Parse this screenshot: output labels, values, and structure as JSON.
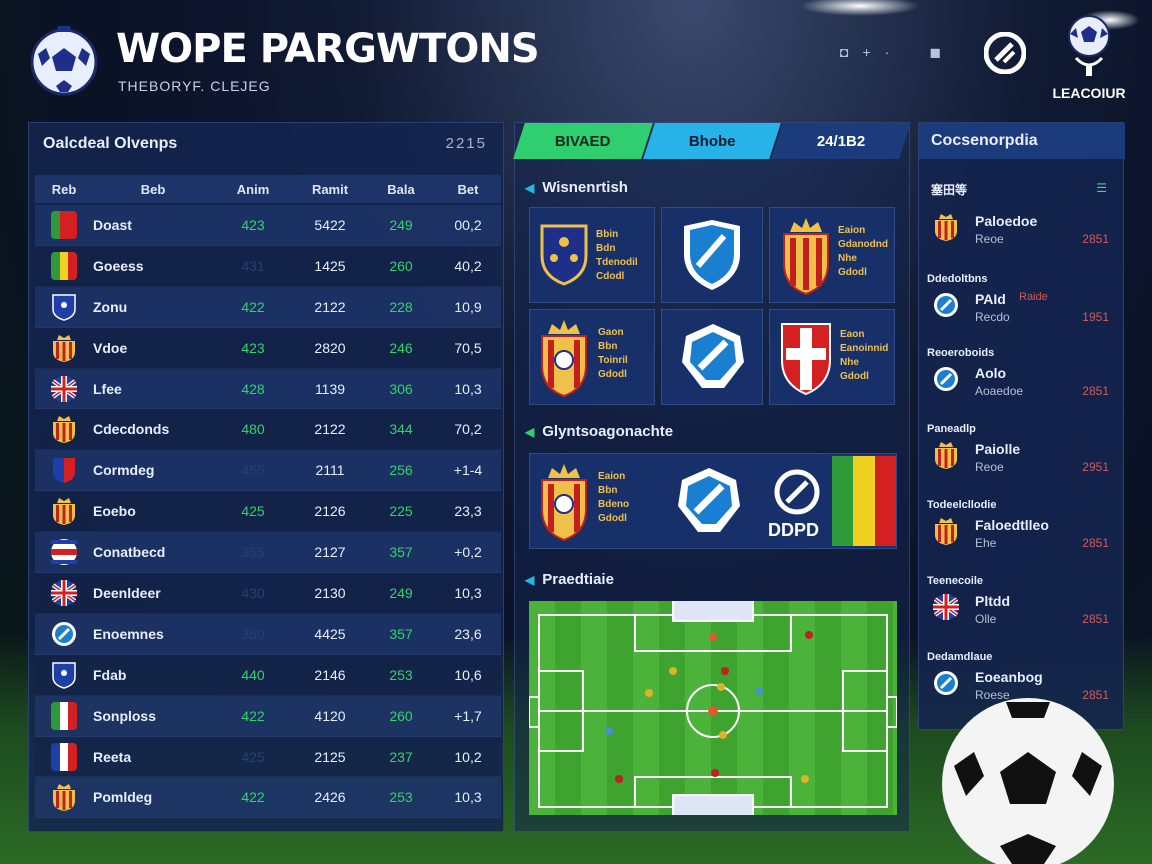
{
  "header": {
    "title": "WOPE PARGWTONS",
    "subtitle": "THEBORYF. CLEJEG",
    "icons": [
      "user-icon",
      "plus-icon",
      "lock-icon"
    ],
    "league_label": "LEACOIUR"
  },
  "standings": {
    "title": "Oalcdeal Olvenps",
    "count": "2215",
    "columns": [
      "Reb",
      "Beb",
      "Anim",
      "Ramit",
      "Bala",
      "Bet"
    ],
    "rows": [
      {
        "team": "Doast",
        "a": "423",
        "b": "5422",
        "c": "249",
        "d": "00,2",
        "a_dim": false,
        "flag": "mex"
      },
      {
        "team": "Goeess",
        "a": "431",
        "b": "1425",
        "c": "260",
        "d": "40,2",
        "a_dim": true,
        "flag": "bel"
      },
      {
        "team": "Zonu",
        "a": "422",
        "b": "2122",
        "c": "228",
        "d": "10,9",
        "a_dim": false,
        "flag": "shield-blue"
      },
      {
        "team": "Vdoe",
        "a": "423",
        "b": "2820",
        "c": "246",
        "d": "70,5",
        "a_dim": false,
        "flag": "spain"
      },
      {
        "team": "Lfee",
        "a": "428",
        "b": "1139",
        "c": "306",
        "d": "10,3",
        "a_dim": false,
        "flag": "uk"
      },
      {
        "team": "Cdecdonds",
        "a": "480",
        "b": "2122",
        "c": "344",
        "d": "70,2",
        "a_dim": false,
        "flag": "spain"
      },
      {
        "team": "Cormdeg",
        "a": "455",
        "b": "2111",
        "c": "256",
        "d": "+1-4",
        "a_dim": true,
        "flag": "shield-red"
      },
      {
        "team": "Eoebo",
        "a": "425",
        "b": "2126",
        "c": "225",
        "d": "23,3",
        "a_dim": false,
        "flag": "spain"
      },
      {
        "team": "Conatbecd",
        "a": "355",
        "b": "2127",
        "c": "357",
        "d": "+0,2",
        "a_dim": true,
        "flag": "en"
      },
      {
        "team": "Deenldeer",
        "a": "430",
        "b": "2130",
        "c": "249",
        "d": "10,3",
        "a_dim": true,
        "flag": "uk"
      },
      {
        "team": "Enoemnes",
        "a": "350",
        "b": "4425",
        "c": "357",
        "d": "23,6",
        "a_dim": true,
        "flag": "round"
      },
      {
        "team": "Fdab",
        "a": "440",
        "b": "2146",
        "c": "253",
        "d": "10,6",
        "a_dim": false,
        "flag": "shield-blue"
      },
      {
        "team": "Sonploss",
        "a": "422",
        "b": "4120",
        "c": "260",
        "d": "+1,7",
        "a_dim": false,
        "flag": "ita"
      },
      {
        "team": "Reeta",
        "a": "425",
        "b": "2125",
        "c": "237",
        "d": "10,2",
        "a_dim": true,
        "flag": "fra"
      },
      {
        "team": "Pomldeg",
        "a": "422",
        "b": "2426",
        "c": "253",
        "d": "10,3",
        "a_dim": false,
        "flag": "spain"
      }
    ]
  },
  "tabs": [
    {
      "label": "BIVAED",
      "color": "#2fcf6f"
    },
    {
      "label": "Bhobe",
      "color": "#27b3e8"
    },
    {
      "label": "24/1B2",
      "color": "#1b3b7c"
    }
  ],
  "middle": {
    "section1": "Wisnenrtish",
    "section2": "Glyntsoagonachte",
    "section3": "Praedtiaie",
    "card_text": {
      "a": [
        "Bbin",
        "Bdn",
        "Tdenodil",
        "Cdodl"
      ],
      "b": [
        "Eaion",
        "Gdanodnd",
        "Nhe",
        "Gdodl"
      ],
      "c": [
        "Gaon",
        "Bbn",
        "Toinril",
        "Gdodl"
      ],
      "d": [
        "Eaon",
        "Eanoinnid",
        "Nhe",
        "Gdodl"
      ],
      "e": [
        "Eaion",
        "Bbn",
        "Bdeno",
        "Gdodl"
      ]
    },
    "ddpd_label": "DDPD"
  },
  "right": {
    "title": "Cocsenorpdia",
    "sub": "塞田等",
    "items": [
      {
        "cap": "",
        "name": "Paloedoe",
        "sub": "Reoe",
        "score": "2851",
        "flag": "spain"
      },
      {
        "cap": "Ddedoltbns",
        "name": "PAId",
        "tag": "Raide",
        "sub": "Recdo",
        "score": "1951",
        "flag": "round"
      },
      {
        "cap": "Reoeroboids",
        "name": "Aolo",
        "sub": "Aoaedoe",
        "score": "2851",
        "flag": "round"
      },
      {
        "cap": "Paneadlp",
        "name": "Paiolle",
        "sub": "Reoe",
        "score": "2951",
        "flag": "spain"
      },
      {
        "cap": "Todeelcllodie",
        "name": "Faloedtlleo",
        "sub": "Ehe",
        "score": "2851",
        "flag": "spain"
      },
      {
        "cap": "Teenecoile",
        "name": "Pltdd",
        "sub": "Olle",
        "score": "2851",
        "flag": "uk"
      },
      {
        "cap": "Dedamdlaue",
        "name": "Eoeanbog",
        "sub": "Roese",
        "score": "2851",
        "flag": "round"
      }
    ]
  }
}
